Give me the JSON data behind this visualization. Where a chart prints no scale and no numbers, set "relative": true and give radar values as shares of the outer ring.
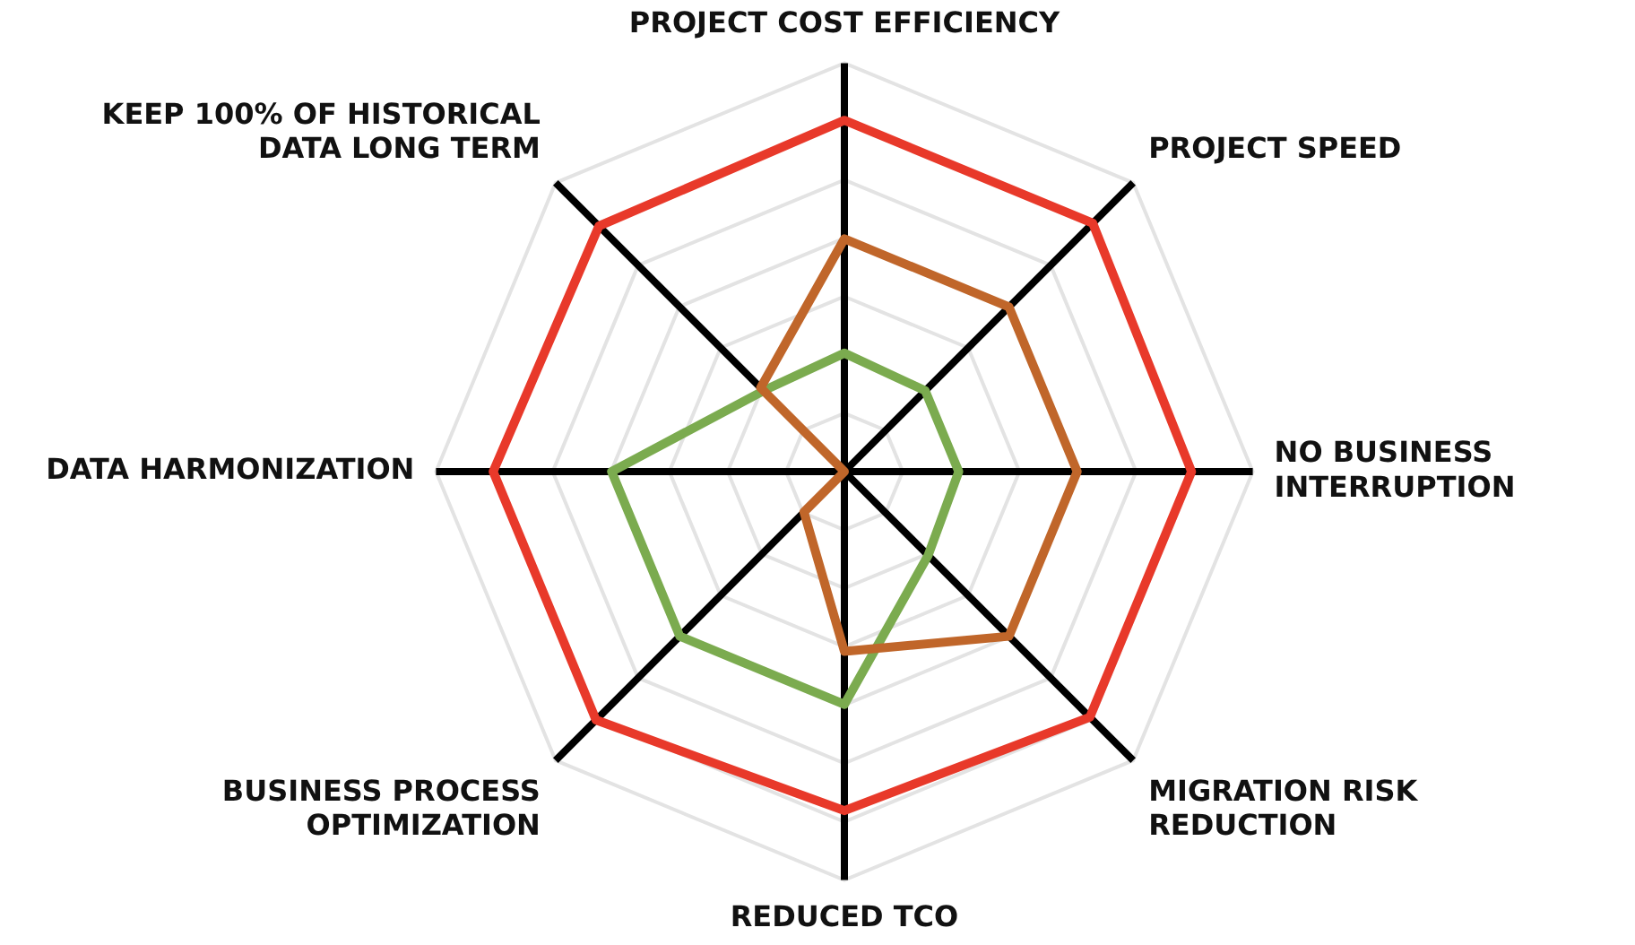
{
  "chart_data": {
    "type": "radar",
    "relative": true,
    "grid": true,
    "legend": false,
    "marker": "none",
    "line_style": "solid",
    "categories": [
      "PROJECT COST EFFICIENCY",
      "PROJECT SPEED",
      "NO BUSINESS\nINTERRUPTION",
      "MIGRATION RISK\nREDUCTION",
      "REDUCED TCO",
      "BUSINESS PROCESS\nOPTIMIZATION",
      "DATA HARMONIZATION",
      "KEEP 100% OF HISTORICAL\nDATA LONG TERM"
    ],
    "series": [
      {
        "color": "#e8392a",
        "values": [
          0.86,
          0.86,
          0.85,
          0.85,
          0.83,
          0.86,
          0.86,
          0.85
        ]
      },
      {
        "color": "#c0662a",
        "values": [
          0.57,
          0.57,
          0.57,
          0.57,
          0.44,
          0.14,
          0.0,
          0.29
        ]
      },
      {
        "color": "#7bab4f",
        "values": [
          0.29,
          0.28,
          0.28,
          0.29,
          0.57,
          0.57,
          0.57,
          0.28
        ]
      }
    ]
  }
}
